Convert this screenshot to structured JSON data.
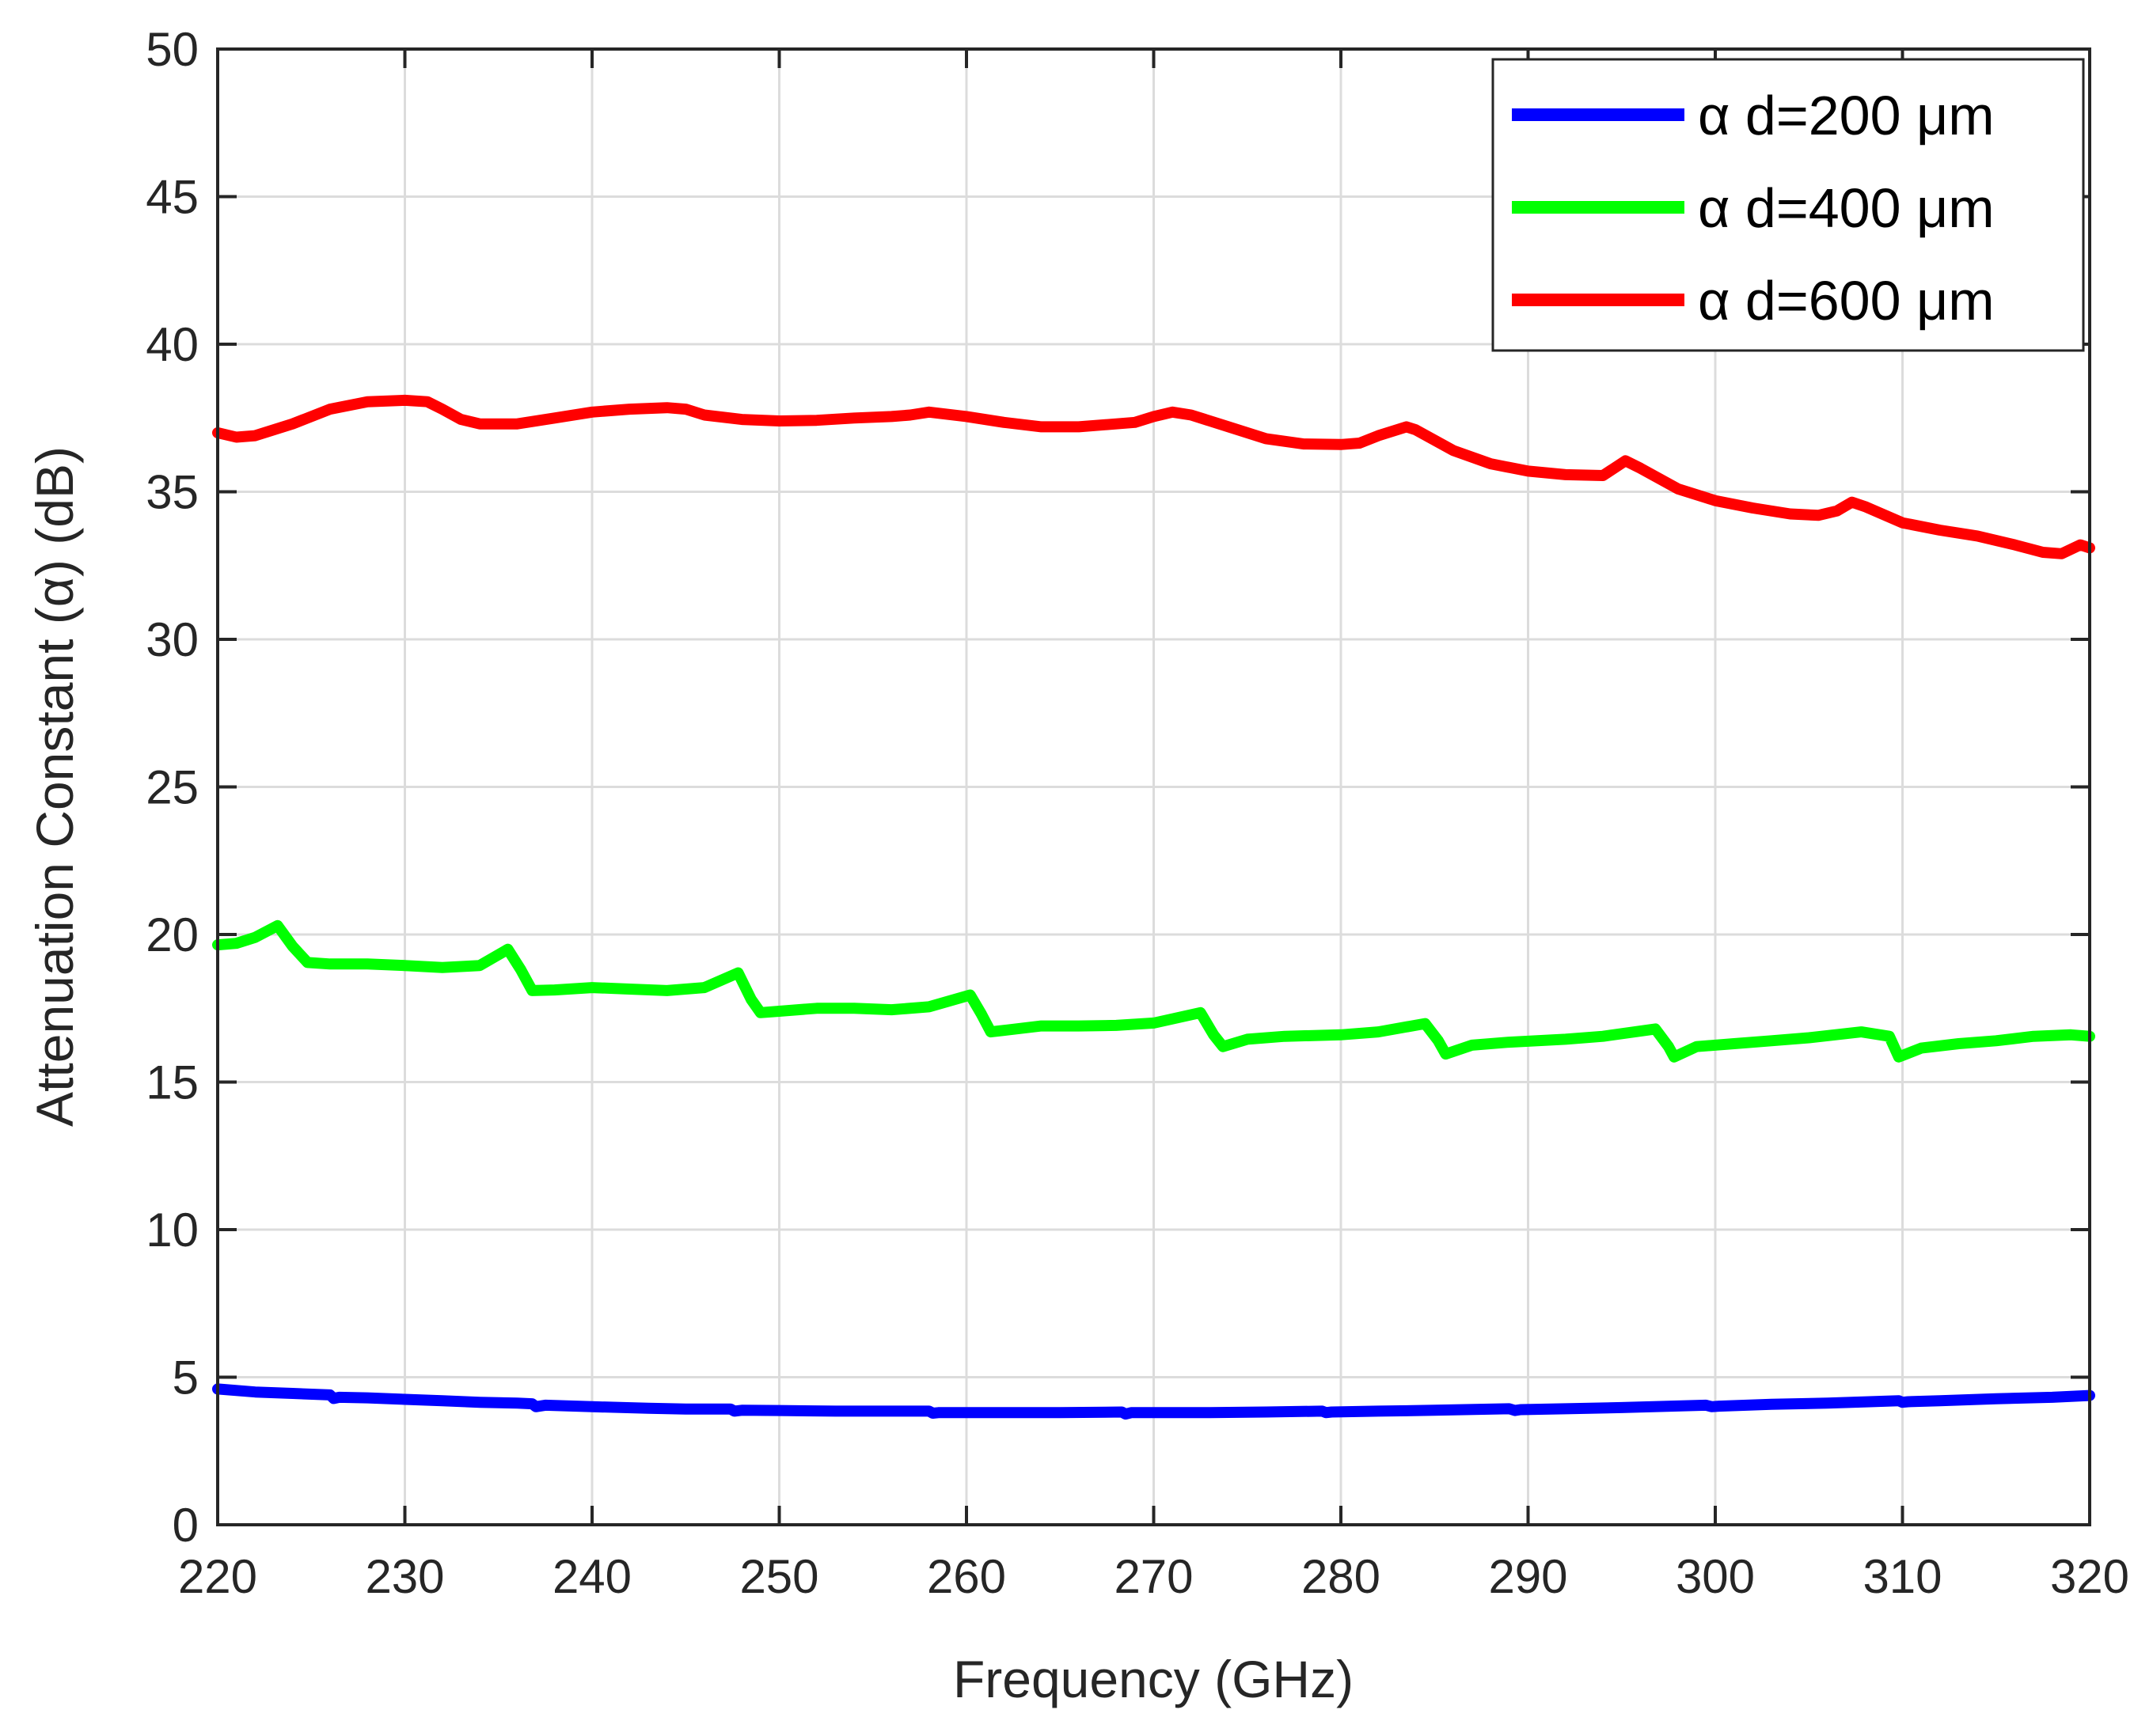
{
  "chart_data": {
    "type": "line",
    "title": "",
    "xlabel": "Frequency (GHz)",
    "ylabel": "Attenuation Constant (α) (dB)",
    "xlim": [
      220,
      320
    ],
    "ylim": [
      0,
      50
    ],
    "xticks": [
      220,
      230,
      240,
      250,
      260,
      270,
      280,
      290,
      300,
      310,
      320
    ],
    "yticks": [
      0,
      5,
      10,
      15,
      20,
      25,
      30,
      35,
      40,
      45,
      50
    ],
    "grid": true,
    "legend_position": "top-right",
    "series": [
      {
        "name": "α d=200 μm",
        "color": "#0000ff",
        "points": [
          [
            220,
            4.6
          ],
          [
            222,
            4.5
          ],
          [
            224,
            4.45
          ],
          [
            226,
            4.4
          ],
          [
            226.2,
            4.28
          ],
          [
            226.5,
            4.32
          ],
          [
            228,
            4.3
          ],
          [
            230,
            4.25
          ],
          [
            232,
            4.2
          ],
          [
            234,
            4.15
          ],
          [
            236,
            4.12
          ],
          [
            236.8,
            4.1
          ],
          [
            237,
            4.0
          ],
          [
            237.5,
            4.05
          ],
          [
            240,
            4.0
          ],
          [
            243,
            3.95
          ],
          [
            245,
            3.92
          ],
          [
            247.4,
            3.92
          ],
          [
            247.6,
            3.85
          ],
          [
            248,
            3.88
          ],
          [
            250,
            3.87
          ],
          [
            253,
            3.85
          ],
          [
            255,
            3.85
          ],
          [
            258,
            3.85
          ],
          [
            258.2,
            3.78
          ],
          [
            258.5,
            3.8
          ],
          [
            260,
            3.8
          ],
          [
            263,
            3.8
          ],
          [
            265,
            3.8
          ],
          [
            268.3,
            3.82
          ],
          [
            268.5,
            3.75
          ],
          [
            268.8,
            3.8
          ],
          [
            270,
            3.8
          ],
          [
            273,
            3.8
          ],
          [
            276,
            3.82
          ],
          [
            279,
            3.85
          ],
          [
            279.2,
            3.8
          ],
          [
            279.5,
            3.82
          ],
          [
            282,
            3.85
          ],
          [
            285,
            3.88
          ],
          [
            289,
            3.93
          ],
          [
            289.3,
            3.87
          ],
          [
            289.6,
            3.9
          ],
          [
            292,
            3.93
          ],
          [
            295,
            3.97
          ],
          [
            299.5,
            4.05
          ],
          [
            299.8,
            4.0
          ],
          [
            300.2,
            4.02
          ],
          [
            303,
            4.08
          ],
          [
            306,
            4.12
          ],
          [
            309.8,
            4.2
          ],
          [
            310,
            4.15
          ],
          [
            310.3,
            4.17
          ],
          [
            312,
            4.2
          ],
          [
            315,
            4.27
          ],
          [
            318,
            4.32
          ],
          [
            320,
            4.38
          ]
        ]
      },
      {
        "name": "α d=400 μm",
        "color": "#00ff00",
        "points": [
          [
            220,
            19.65
          ],
          [
            221,
            19.7
          ],
          [
            222,
            19.9
          ],
          [
            223.2,
            20.3
          ],
          [
            224,
            19.6
          ],
          [
            224.8,
            19.05
          ],
          [
            226,
            19.0
          ],
          [
            228,
            19.0
          ],
          [
            230,
            18.95
          ],
          [
            232,
            18.88
          ],
          [
            234,
            18.95
          ],
          [
            235.5,
            19.5
          ],
          [
            236.2,
            18.8
          ],
          [
            236.8,
            18.1
          ],
          [
            238,
            18.12
          ],
          [
            240,
            18.2
          ],
          [
            242,
            18.15
          ],
          [
            244,
            18.1
          ],
          [
            246,
            18.2
          ],
          [
            247.8,
            18.7
          ],
          [
            248.5,
            17.8
          ],
          [
            249,
            17.35
          ],
          [
            250,
            17.4
          ],
          [
            252,
            17.5
          ],
          [
            254,
            17.5
          ],
          [
            256,
            17.45
          ],
          [
            258,
            17.55
          ],
          [
            260.2,
            17.95
          ],
          [
            260.8,
            17.3
          ],
          [
            261.3,
            16.7
          ],
          [
            262,
            16.75
          ],
          [
            264,
            16.9
          ],
          [
            266,
            16.9
          ],
          [
            268,
            16.92
          ],
          [
            270,
            17.0
          ],
          [
            272.5,
            17.35
          ],
          [
            273.2,
            16.6
          ],
          [
            273.7,
            16.2
          ],
          [
            275,
            16.45
          ],
          [
            277,
            16.55
          ],
          [
            280,
            16.6
          ],
          [
            282,
            16.7
          ],
          [
            284.5,
            16.98
          ],
          [
            285.2,
            16.4
          ],
          [
            285.6,
            15.95
          ],
          [
            287,
            16.25
          ],
          [
            289,
            16.35
          ],
          [
            292,
            16.45
          ],
          [
            294,
            16.55
          ],
          [
            296.8,
            16.8
          ],
          [
            297.5,
            16.2
          ],
          [
            297.8,
            15.85
          ],
          [
            299,
            16.2
          ],
          [
            301,
            16.3
          ],
          [
            303,
            16.4
          ],
          [
            305,
            16.5
          ],
          [
            307.8,
            16.7
          ],
          [
            309.3,
            16.55
          ],
          [
            309.8,
            15.85
          ],
          [
            311,
            16.15
          ],
          [
            313,
            16.3
          ],
          [
            315,
            16.4
          ],
          [
            317,
            16.55
          ],
          [
            319,
            16.6
          ],
          [
            320,
            16.55
          ]
        ]
      },
      {
        "name": "α d=600 μm",
        "color": "#ff0000",
        "points": [
          [
            220,
            37.0
          ],
          [
            221,
            36.85
          ],
          [
            222,
            36.9
          ],
          [
            224,
            37.3
          ],
          [
            226,
            37.8
          ],
          [
            228,
            38.05
          ],
          [
            230,
            38.1
          ],
          [
            231.2,
            38.05
          ],
          [
            232,
            37.8
          ],
          [
            233,
            37.45
          ],
          [
            234,
            37.3
          ],
          [
            236,
            37.3
          ],
          [
            238,
            37.5
          ],
          [
            240,
            37.7
          ],
          [
            242,
            37.8
          ],
          [
            244,
            37.85
          ],
          [
            245,
            37.8
          ],
          [
            246,
            37.6
          ],
          [
            248,
            37.45
          ],
          [
            250,
            37.4
          ],
          [
            252,
            37.42
          ],
          [
            254,
            37.5
          ],
          [
            256,
            37.55
          ],
          [
            257,
            37.6
          ],
          [
            258,
            37.7
          ],
          [
            260,
            37.55
          ],
          [
            262,
            37.35
          ],
          [
            264,
            37.2
          ],
          [
            266,
            37.2
          ],
          [
            268,
            37.3
          ],
          [
            269,
            37.35
          ],
          [
            270,
            37.55
          ],
          [
            271,
            37.7
          ],
          [
            272,
            37.6
          ],
          [
            274,
            37.2
          ],
          [
            276,
            36.8
          ],
          [
            278,
            36.62
          ],
          [
            280,
            36.6
          ],
          [
            281,
            36.65
          ],
          [
            282,
            36.9
          ],
          [
            283.5,
            37.2
          ],
          [
            284,
            37.1
          ],
          [
            286,
            36.4
          ],
          [
            288,
            35.95
          ],
          [
            290,
            35.7
          ],
          [
            292,
            35.58
          ],
          [
            294,
            35.55
          ],
          [
            295.2,
            36.05
          ],
          [
            296,
            35.8
          ],
          [
            298,
            35.1
          ],
          [
            300,
            34.7
          ],
          [
            302,
            34.45
          ],
          [
            304,
            34.25
          ],
          [
            305.5,
            34.2
          ],
          [
            306.5,
            34.35
          ],
          [
            307.3,
            34.65
          ],
          [
            308,
            34.5
          ],
          [
            310,
            33.95
          ],
          [
            312,
            33.7
          ],
          [
            314,
            33.5
          ],
          [
            316,
            33.2
          ],
          [
            317.5,
            32.95
          ],
          [
            318.5,
            32.9
          ],
          [
            319.5,
            33.2
          ],
          [
            320,
            33.1
          ]
        ]
      }
    ]
  }
}
